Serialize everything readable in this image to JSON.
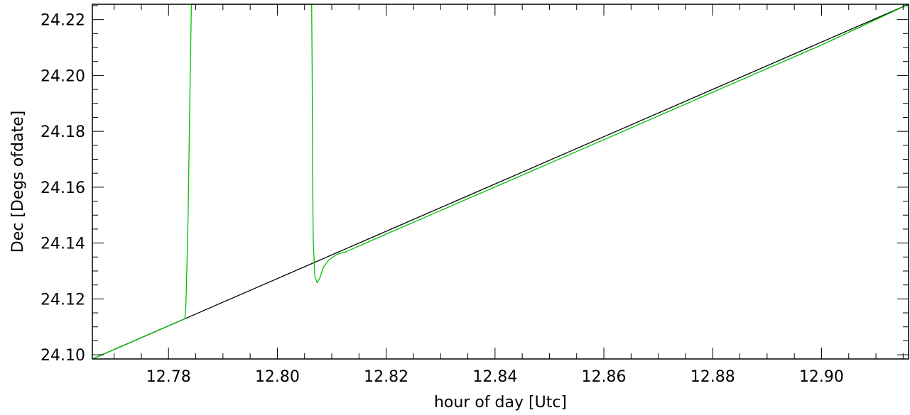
{
  "chart_data": {
    "type": "line",
    "xlabel": "hour of day [Utc]",
    "ylabel": "Dec [Degs ofdate]",
    "xlim": [
      12.766,
      12.916
    ],
    "ylim": [
      24.0985,
      24.2255
    ],
    "x_ticks": [
      "12.78",
      "12.80",
      "12.82",
      "12.84",
      "12.86",
      "12.88",
      "12.90"
    ],
    "x_tick_values": [
      12.78,
      12.8,
      12.82,
      12.84,
      12.86,
      12.88,
      12.9
    ],
    "y_ticks": [
      "24.10",
      "24.12",
      "24.14",
      "24.16",
      "24.18",
      "24.20",
      "24.22"
    ],
    "y_tick_values": [
      24.1,
      24.12,
      24.14,
      24.16,
      24.18,
      24.2,
      24.22
    ],
    "x_minor_step": 0.005,
    "y_minor_step": 0.005,
    "grid": false,
    "colors": {
      "black_series": "#000000",
      "green_series": "#00c000",
      "axes": "#000000"
    },
    "series": [
      {
        "color": "#000000",
        "points": [
          [
            12.766,
            24.0985
          ],
          [
            12.916,
            24.2255
          ]
        ]
      },
      {
        "color": "#00c000",
        "points": [
          [
            12.766,
            24.0985
          ],
          [
            12.775,
            24.1061
          ],
          [
            12.783,
            24.1129
          ],
          [
            12.7832,
            24.118
          ],
          [
            12.7836,
            24.15
          ],
          [
            12.7839,
            24.19
          ],
          [
            12.7842,
            24.2255
          ],
          [
            12.8063,
            24.2255
          ],
          [
            12.8064,
            24.2
          ],
          [
            12.8065,
            24.16
          ],
          [
            12.8066,
            24.14
          ],
          [
            12.8069,
            24.128
          ],
          [
            12.8073,
            24.1258
          ],
          [
            12.8078,
            24.1275
          ],
          [
            12.8085,
            24.1315
          ],
          [
            12.8095,
            24.134
          ],
          [
            12.811,
            24.136
          ],
          [
            12.8125,
            24.1368
          ],
          [
            12.82,
            24.1432
          ],
          [
            12.84,
            24.1601
          ],
          [
            12.86,
            24.177
          ],
          [
            12.88,
            24.194
          ],
          [
            12.9,
            24.2109
          ],
          [
            12.916,
            24.2255
          ]
        ]
      }
    ]
  }
}
